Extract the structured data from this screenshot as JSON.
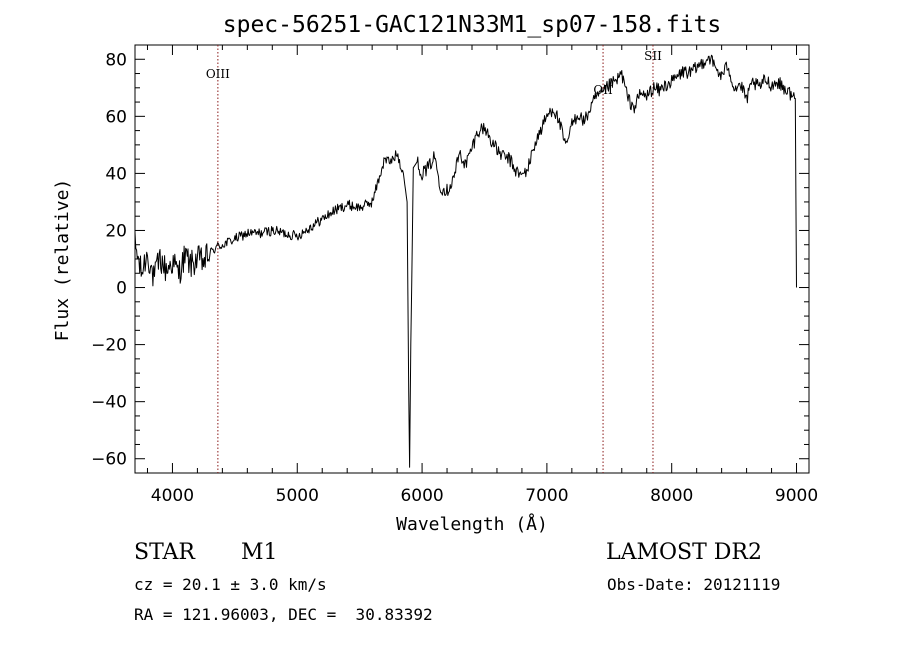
{
  "chart_data": {
    "type": "line",
    "title": "spec-56251-GAC121N33M1_sp07-158.fits",
    "xlabel": "Wavelength (Å)",
    "ylabel": "Flux (relative)",
    "xlim": [
      3700,
      9100
    ],
    "ylim": [
      -65,
      85
    ],
    "xticks": [
      4000,
      5000,
      6000,
      7000,
      8000,
      9000
    ],
    "xtick_labels": [
      "4000",
      "5000",
      "6000",
      "7000",
      "8000",
      "9000"
    ],
    "yticks": [
      -60,
      -40,
      -20,
      0,
      20,
      40,
      60,
      80
    ],
    "ytick_labels": [
      "−60",
      "−40",
      "−20",
      "0",
      "20",
      "40",
      "60",
      "80"
    ],
    "grid": false,
    "series": [
      {
        "x": [
          3700,
          3750,
          3800,
          3850,
          3900,
          3950,
          4000,
          4050,
          4100,
          4150,
          4200,
          4250,
          4300,
          4350,
          4400,
          4500,
          4600,
          4700,
          4800,
          4900,
          5000,
          5100,
          5200,
          5300,
          5400,
          5500,
          5600,
          5700,
          5750,
          5800,
          5850,
          5880,
          5893,
          5900,
          5910,
          5930,
          5960,
          6000,
          6050,
          6100,
          6150,
          6200,
          6250,
          6300,
          6350,
          6400,
          6450,
          6500,
          6550,
          6600,
          6650,
          6700,
          6750,
          6800,
          6850,
          6900,
          6950,
          7000,
          7050,
          7100,
          7150,
          7200,
          7250,
          7300,
          7350,
          7400,
          7450,
          7500,
          7550,
          7600,
          7650,
          7700,
          7750,
          7800,
          7850,
          7900,
          7950,
          8000,
          8050,
          8100,
          8150,
          8200,
          8250,
          8300,
          8350,
          8400,
          8450,
          8500,
          8550,
          8600,
          8650,
          8700,
          8750,
          8800,
          8850,
          8900,
          8950,
          8990,
          9000
        ],
        "values": [
          15,
          5,
          12,
          3,
          10,
          6,
          9,
          5,
          11,
          8,
          10,
          9,
          12,
          14,
          15,
          17,
          19,
          19,
          20,
          19,
          18,
          21,
          24,
          27,
          29,
          28,
          30,
          45,
          44,
          47,
          40,
          30,
          -36,
          -63,
          -20,
          42,
          44,
          40,
          42,
          46,
          35,
          34,
          38,
          47,
          43,
          49,
          55,
          56,
          52,
          48,
          46,
          45,
          41,
          39,
          42,
          50,
          55,
          60,
          63,
          58,
          49,
          57,
          61,
          58,
          63,
          67,
          68,
          71,
          72,
          75,
          66,
          63,
          68,
          67,
          70,
          69,
          71,
          72,
          74,
          76,
          75,
          77,
          79,
          81,
          77,
          74,
          78,
          70,
          71,
          66,
          72,
          70,
          73,
          71,
          72,
          70,
          68,
          66,
          0
        ]
      }
    ],
    "line_markers": [
      {
        "label": "OIII",
        "x": 4364
      },
      {
        "label": "OII",
        "x": 7450
      },
      {
        "label": "SII",
        "x": 7850
      }
    ],
    "line_color": "#000000",
    "marker_color": "#8b1a1a"
  },
  "info": {
    "class": "STAR",
    "subclass": "M1",
    "survey": "LAMOST DR2",
    "cz": "cz = 20.1 ± 3.0 km/s",
    "obs_date": "Obs-Date: 20121119",
    "radec": "RA = 121.96003, DEC =  30.83392"
  }
}
